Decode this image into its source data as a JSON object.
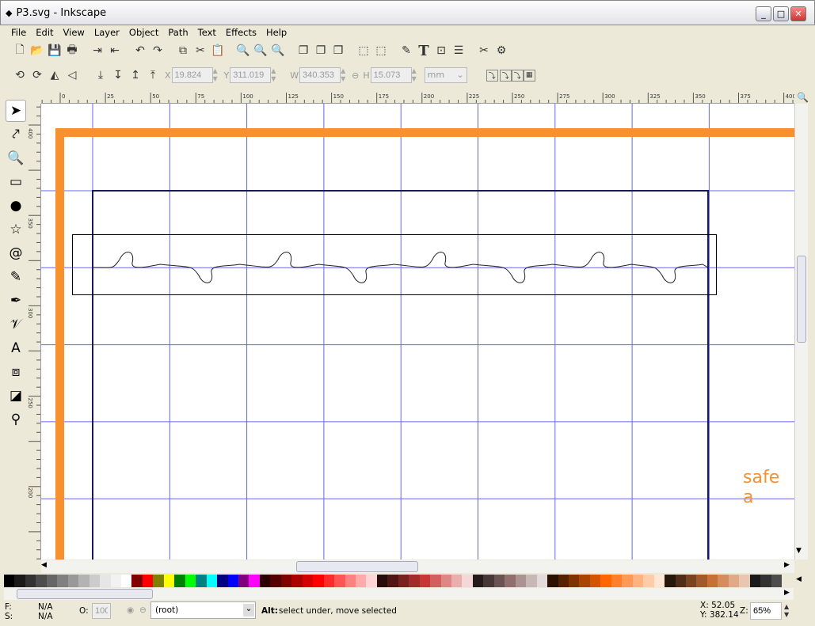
{
  "window": {
    "title": "P3.svg - Inkscape",
    "minimize": "_",
    "maximize": "□",
    "close": "✕"
  },
  "menu": [
    "File",
    "Edit",
    "View",
    "Layer",
    "Object",
    "Path",
    "Text",
    "Effects",
    "Help"
  ],
  "toolbar1_icons": [
    "new-icon",
    "open-icon",
    "save-icon",
    "print-icon",
    "import-icon",
    "export-icon",
    "undo-icon",
    "redo-icon",
    "copy-icon",
    "cut-icon",
    "paste-icon",
    "zoom-selection-icon",
    "zoom-drawing-icon",
    "zoom-page-icon",
    "duplicate-icon",
    "clone-icon",
    "unlink-clone-icon",
    "group-icon",
    "ungroup-icon",
    "fill-stroke-icon",
    "text-tool-icon",
    "xml-editor-icon",
    "align-icon",
    "preferences-icon",
    "document-properties-icon"
  ],
  "toolbar1_glyphs": [
    "🗋",
    "📂",
    "💾",
    "🖶",
    "⇥",
    "⇤",
    "↶",
    "↷",
    "⧉",
    "✂",
    "📋",
    "🔍",
    "🔍",
    "🔍",
    "❐",
    "❐",
    "❐",
    "⬚",
    "⬚",
    "✎",
    "T",
    "⊡",
    "☰",
    "✂",
    "⚙"
  ],
  "selector_toolbar": {
    "x_label": "X",
    "x": "19.824",
    "y_label": "Y",
    "y": "311.019",
    "w_label": "W",
    "w": "340.353",
    "h_label": "H",
    "h": "15.073",
    "units": "mm"
  },
  "ruler_top": [
    "0",
    "25",
    "50",
    "75",
    "100",
    "125",
    "150",
    "175",
    "200",
    "225",
    "250",
    "275",
    "300",
    "325",
    "350",
    "375",
    "400"
  ],
  "ruler_left": [
    "400",
    "350",
    "300",
    "250",
    "200"
  ],
  "tools": [
    {
      "name": "selector-tool",
      "g": "➤"
    },
    {
      "name": "node-tool",
      "g": "⤤"
    },
    {
      "name": "zoom-tool",
      "g": "🔍"
    },
    {
      "name": "rectangle-tool",
      "g": "▭"
    },
    {
      "name": "ellipse-tool",
      "g": "●"
    },
    {
      "name": "star-tool",
      "g": "☆"
    },
    {
      "name": "spiral-tool",
      "g": "@"
    },
    {
      "name": "pencil-tool",
      "g": "✎"
    },
    {
      "name": "pen-tool",
      "g": "✒"
    },
    {
      "name": "calligraphy-tool",
      "g": "𝒱"
    },
    {
      "name": "text-tool",
      "g": "A"
    },
    {
      "name": "connector-tool",
      "g": "⧈"
    },
    {
      "name": "gradient-tool",
      "g": "◪"
    },
    {
      "name": "dropper-tool",
      "g": "⚲"
    }
  ],
  "canvas": {
    "text": "safe a",
    "accent": "#f7912f",
    "guide": "#6666ee",
    "page": "#1a1a50"
  },
  "palette": [
    "#000000",
    "#1a1a1a",
    "#333333",
    "#4d4d4d",
    "#666666",
    "#808080",
    "#999999",
    "#b3b3b3",
    "#cccccc",
    "#e6e6e6",
    "#f2f2f2",
    "#ffffff",
    "#800000",
    "#ff0000",
    "#808000",
    "#ffff00",
    "#008000",
    "#00ff00",
    "#008080",
    "#00ffff",
    "#000080",
    "#0000ff",
    "#800080",
    "#ff00ff",
    "#2b0000",
    "#550000",
    "#800000",
    "#aa0000",
    "#d40000",
    "#ff0000",
    "#ff2a2a",
    "#ff5555",
    "#ff8080",
    "#ffaaaa",
    "#ffd5d5",
    "#280b0b",
    "#501616",
    "#782121",
    "#a02c2c",
    "#c83737",
    "#d35f5f",
    "#de8787",
    "#e9afaf",
    "#f4d7d7",
    "#241c1c",
    "#483737",
    "#6c5353",
    "#916f6f",
    "#ac9393",
    "#c8b7b7",
    "#e3dbdb",
    "#2b1100",
    "#552200",
    "#803300",
    "#aa4400",
    "#d45500",
    "#ff6600",
    "#ff7f2a",
    "#ff9955",
    "#ffb380",
    "#ffccaa",
    "#ffe6d5",
    "#28170b",
    "#502d16",
    "#784421",
    "#a05a2c",
    "#c87137",
    "#d38d5f",
    "#deaa87",
    "#e9c6af",
    "#1a1a1a",
    "#333333",
    "#4d4d4d"
  ],
  "status": {
    "fill_label": "F:",
    "fill": "N/A",
    "stroke_label": "S:",
    "stroke": "N/A",
    "opacity_label": "O:",
    "opacity": "100",
    "layer": "(root)",
    "message_key": "Alt:",
    "message": " select under, move selected",
    "x": "X: 52.05",
    "y": "Y: 382.14",
    "zoom_label": "Z:",
    "zoom": "65%"
  }
}
